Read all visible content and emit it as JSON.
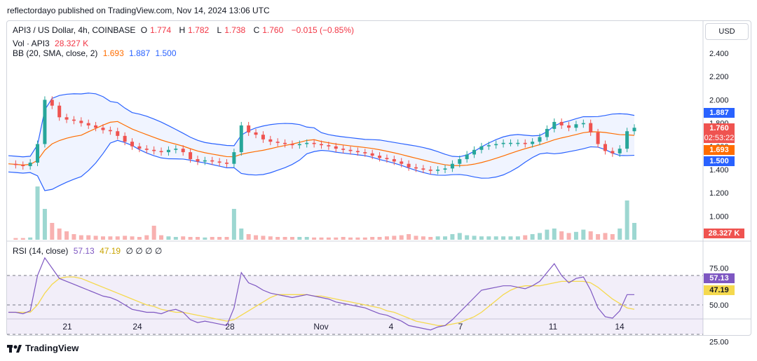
{
  "header": {
    "published": "reflectordayo published on TradingView.com, Nov 14, 2024 13:06 UTC"
  },
  "legend": {
    "symbol": "API3 / US Dollar, 4h, COINBASE",
    "o_label": "O",
    "o": "1.774",
    "h_label": "H",
    "h": "1.782",
    "l_label": "L",
    "l": "1.738",
    "c_label": "C",
    "c": "1.760",
    "change": "−0.015 (−0.85%)",
    "vol_label": "Vol · API3",
    "vol": "28.327 K",
    "bb_label": "BB (20, SMA, close, 2)",
    "bb_mid": "1.693",
    "bb_up": "1.887",
    "bb_low": "1.500"
  },
  "rsi_legend": {
    "label": "RSI (14, close)",
    "rsi": "57.13",
    "ma": "47.19",
    "extra": "∅ ∅ ∅ ∅"
  },
  "currency": "USD",
  "badges": {
    "upper": "1.887",
    "last": "1.760",
    "countdown": "02:53:22",
    "mid": "1.693",
    "lower": "1.500",
    "volume": "28.327 K",
    "rsi": "57.13",
    "rsi_ma": "47.19"
  },
  "branding": "TradingView",
  "colors": {
    "up": "#26a69a",
    "down": "#ef5350",
    "bb_band": "#2962ff",
    "bb_basis": "#ff6d00",
    "rsi": "#7e57c2",
    "rsi_ma": "#f5d94e"
  },
  "chart_data": {
    "type": "candlestick",
    "price_ticks": [
      "2.400",
      "2.200",
      "2.000",
      "1.800",
      "1.600",
      "1.400",
      "1.200",
      "1.000"
    ],
    "rsi_ticks": [
      "75.00",
      "50.00",
      "25.00"
    ],
    "x_ticks": [
      "21",
      "24",
      "28",
      "Nov",
      "4",
      "7",
      "11",
      "14"
    ],
    "ylim": [
      0.8,
      2.6
    ],
    "close_path": [
      1.45,
      1.44,
      1.43,
      1.46,
      1.62,
      2.0,
      1.95,
      1.85,
      1.83,
      1.82,
      1.8,
      1.78,
      1.76,
      1.74,
      1.73,
      1.69,
      1.64,
      1.6,
      1.58,
      1.57,
      1.56,
      1.55,
      1.57,
      1.58,
      1.55,
      1.49,
      1.47,
      1.48,
      1.47,
      1.46,
      1.45,
      1.55,
      1.78,
      1.72,
      1.7,
      1.66,
      1.64,
      1.63,
      1.62,
      1.61,
      1.62,
      1.63,
      1.62,
      1.61,
      1.6,
      1.58,
      1.57,
      1.56,
      1.55,
      1.54,
      1.52,
      1.5,
      1.49,
      1.47,
      1.45,
      1.42,
      1.41,
      1.4,
      1.39,
      1.4,
      1.41,
      1.45,
      1.49,
      1.53,
      1.57,
      1.6,
      1.61,
      1.62,
      1.63,
      1.63,
      1.63,
      1.62,
      1.64,
      1.68,
      1.75,
      1.81,
      1.78,
      1.76,
      1.79,
      1.8,
      1.72,
      1.62,
      1.56,
      1.54,
      1.58,
      1.73,
      1.76
    ],
    "volume_rel": [
      0.03,
      0.03,
      0.03,
      0.04,
      0.95,
      0.55,
      0.3,
      0.2,
      0.15,
      0.1,
      0.08,
      0.08,
      0.07,
      0.06,
      0.06,
      0.06,
      0.07,
      0.06,
      0.05,
      0.08,
      0.25,
      0.08,
      0.06,
      0.05,
      0.06,
      0.05,
      0.05,
      0.04,
      0.05,
      0.05,
      0.05,
      0.55,
      0.2,
      0.1,
      0.08,
      0.07,
      0.06,
      0.05,
      0.05,
      0.05,
      0.05,
      0.05,
      0.04,
      0.04,
      0.04,
      0.04,
      0.05,
      0.04,
      0.04,
      0.04,
      0.05,
      0.05,
      0.06,
      0.07,
      0.08,
      0.1,
      0.07,
      0.06,
      0.05,
      0.06,
      0.06,
      0.1,
      0.12,
      0.08,
      0.07,
      0.06,
      0.06,
      0.06,
      0.06,
      0.06,
      0.06,
      0.08,
      0.1,
      0.12,
      0.18,
      0.2,
      0.15,
      0.12,
      0.14,
      0.18,
      0.15,
      0.1,
      0.12,
      0.1,
      0.2,
      0.7,
      0.3
    ],
    "rsi": [
      45,
      45,
      44,
      46,
      70,
      82,
      75,
      68,
      66,
      64,
      62,
      60,
      58,
      56,
      55,
      53,
      50,
      47,
      46,
      45,
      45,
      44,
      46,
      47,
      45,
      40,
      38,
      39,
      38,
      37,
      36,
      48,
      72,
      65,
      63,
      60,
      58,
      57,
      56,
      55,
      56,
      57,
      56,
      55,
      54,
      52,
      51,
      50,
      49,
      48,
      46,
      44,
      43,
      41,
      39,
      36,
      35,
      34,
      33,
      35,
      36,
      40,
      45,
      50,
      55,
      60,
      61,
      62,
      63,
      63,
      62,
      61,
      63,
      66,
      72,
      78,
      70,
      65,
      68,
      69,
      60,
      48,
      42,
      41,
      46,
      57,
      57
    ],
    "rsi_ma": [
      45,
      45,
      45,
      45,
      50,
      58,
      64,
      68,
      69,
      69,
      68,
      66,
      64,
      62,
      60,
      58,
      56,
      54,
      52,
      50,
      49,
      47,
      46,
      45,
      45,
      44,
      43,
      42,
      41,
      40,
      39,
      40,
      43,
      46,
      49,
      52,
      55,
      57,
      57,
      57,
      57,
      57,
      56,
      56,
      55,
      54,
      53,
      52,
      51,
      50,
      49,
      48,
      46,
      45,
      43,
      41,
      39,
      38,
      37,
      36,
      36,
      37,
      38,
      40,
      42,
      45,
      49,
      53,
      57,
      60,
      62,
      63,
      63,
      63,
      64,
      65,
      66,
      66,
      66,
      66,
      65,
      62,
      58,
      54,
      51,
      48,
      47
    ]
  }
}
